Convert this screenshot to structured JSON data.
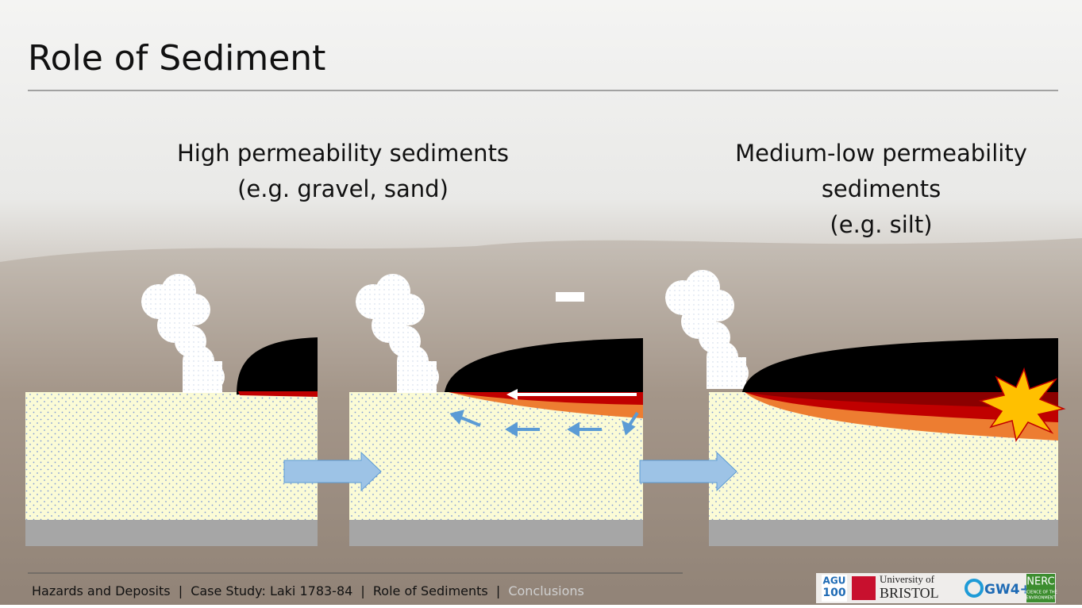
{
  "header": {
    "title": "Role of Sediment"
  },
  "panels": {
    "left_caption": [
      "High permeability sediments",
      "(e.g. gravel, sand)"
    ],
    "right_caption": [
      "Medium-low permeability",
      "sediments",
      "(e.g. silt)"
    ]
  },
  "footer": {
    "items": [
      "Hazards and Deposits",
      "Case Study: Laki 1783-84",
      "Role of Sediments",
      "Conclusions"
    ],
    "separator": "|"
  },
  "logos": {
    "agu": [
      "AGU",
      "100"
    ],
    "bristol": [
      "University of",
      "BRISTOL"
    ],
    "gw4": "GW4+",
    "nerc": [
      "NERC",
      "SCIENCE OF THE",
      "ENVIRONMENT"
    ]
  }
}
